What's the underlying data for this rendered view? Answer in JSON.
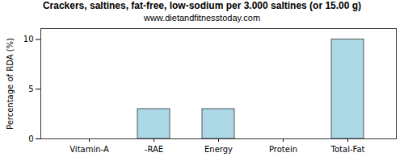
{
  "chart_data": {
    "type": "bar",
    "title": "Crackers, saltines, fat-free, low-sodium per 3.000 saltines (or 15.00 g)",
    "subtitle": "www.dietandfitnesstoday.com",
    "y_label": "Percentage of RDA (%)",
    "categories": [
      "Vitamin-A",
      "-RAE",
      "Energy",
      "Protein",
      "Total-Fat"
    ],
    "values": [
      0,
      3,
      3,
      0,
      10
    ],
    "color": "#add8e6",
    "ylim": [
      0,
      11.1
    ],
    "yticks": [
      0,
      5,
      10
    ],
    "grid": false
  }
}
